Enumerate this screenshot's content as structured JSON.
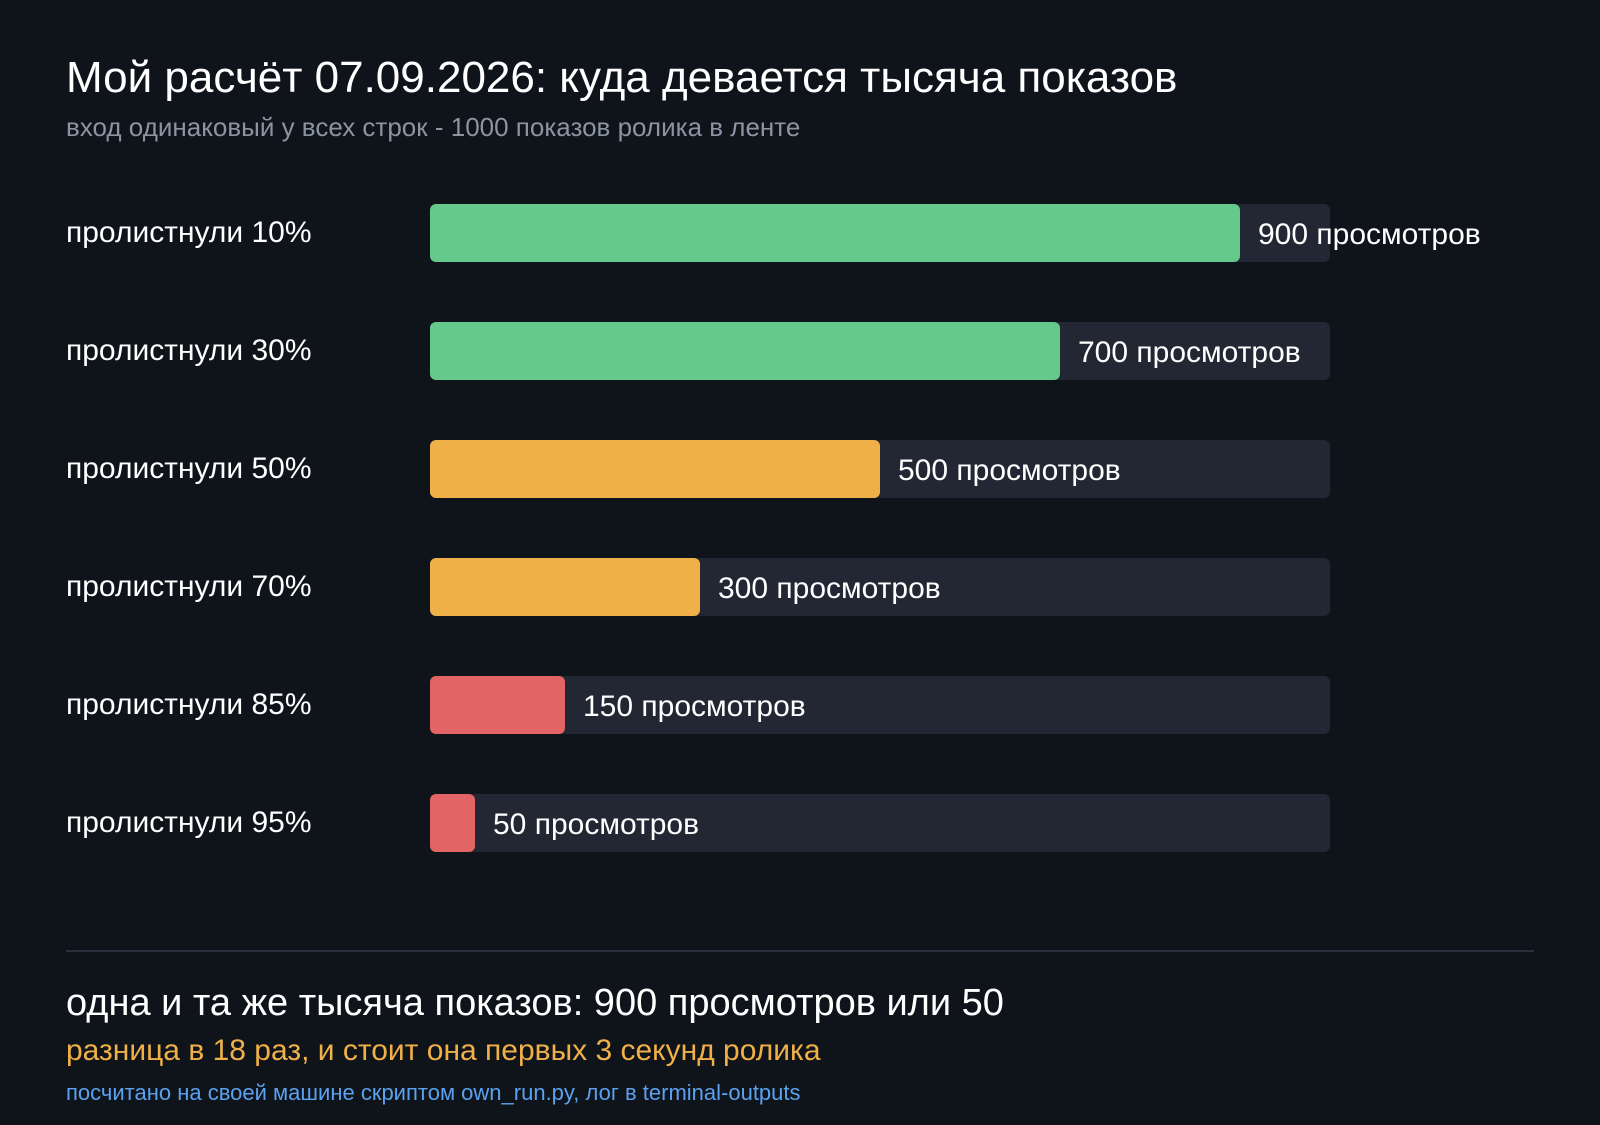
{
  "header": {
    "title": "Мой расчёт 07.09.2026: куда девается тысяча показов",
    "subtitle": "вход одинаковый у всех строк - 1000 показов ролика в ленте"
  },
  "chart_data": {
    "type": "bar",
    "orientation": "horizontal",
    "categories": [
      "пролистнули 10%",
      "пролистнули 30%",
      "пролистнули 50%",
      "пролистнули 70%",
      "пролистнули 85%",
      "пролистнули 95%"
    ],
    "values": [
      900,
      700,
      500,
      300,
      150,
      50
    ],
    "value_labels": [
      "900 просмотров",
      "700 просмотров",
      "500 просмотров",
      "300 просмотров",
      "150 просмотров",
      "50 просмотров"
    ],
    "xlim": [
      0,
      1000
    ],
    "colors": [
      "#64c98a",
      "#64c98a",
      "#f0b048",
      "#f0b048",
      "#e36464",
      "#e36464"
    ],
    "track_color": "#222733",
    "grid": false,
    "legend": "none"
  },
  "summary": {
    "main": "одна и та же тысяча показов: 900 просмотров или 50",
    "accent": "разница в 18 раз, и стоит она первых 3 секунд ролика",
    "note": "посчитано на своей машине скриптом own_run.py, лог в terminal-outputs"
  }
}
